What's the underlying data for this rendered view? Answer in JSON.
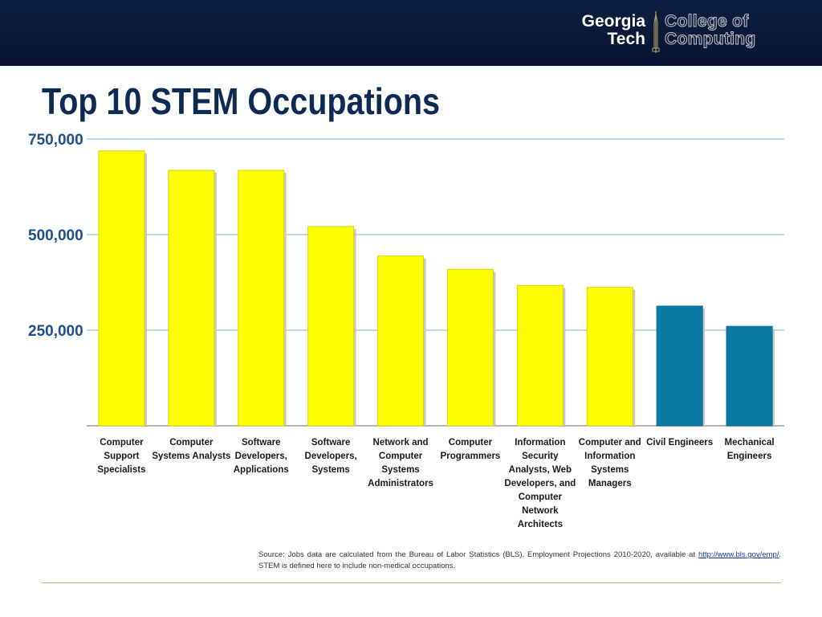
{
  "header": {
    "logo": {
      "line1": "Georgia",
      "line2": "Tech",
      "coc_line1": "College of",
      "coc_line2": "Computing"
    },
    "background_color": "#0d1f3f"
  },
  "slide": {
    "title": "Top 10 STEM Occupations"
  },
  "chart_data": {
    "type": "bar",
    "categories": [
      "Computer Support Specialists",
      "Computer Systems Analysts",
      "Software Developers, Applications",
      "Software Developers, Systems",
      "Network and Computer Systems Administrators",
      "Computer Programmers",
      "Information Security Analysts, Web Developers, and Computer Network Architects",
      "Computer and Information Systems Managers",
      "Civil Engineers",
      "Mechanical Engineers"
    ],
    "category_label_lines": [
      [
        "Computer",
        "Support",
        "Specialists"
      ],
      [
        "Computer",
        "Systems Analysts"
      ],
      [
        "Software",
        "Developers,",
        "Applications"
      ],
      [
        "Software",
        "Developers,",
        "Systems"
      ],
      [
        "Network and",
        "Computer",
        "Systems",
        "Administrators"
      ],
      [
        "Computer",
        "Programmers"
      ],
      [
        "Information",
        "Security",
        "Analysts, Web",
        "Developers, and",
        "Computer",
        "Network",
        "Architects"
      ],
      [
        "Computer and",
        "Information",
        "Systems",
        "Managers"
      ],
      [
        "Civil Engineers"
      ],
      [
        "Mechanical",
        "Engineers"
      ]
    ],
    "values": [
      719000,
      668000,
      668000,
      521000,
      444000,
      409000,
      367000,
      362000,
      313000,
      260000
    ],
    "bar_colors": [
      "#ffff00",
      "#ffff00",
      "#ffff00",
      "#ffff00",
      "#ffff00",
      "#ffff00",
      "#ffff00",
      "#ffff00",
      "#0a7aa5",
      "#0a7aa5"
    ],
    "ylim": [
      0,
      750000
    ],
    "yticks": [
      250000,
      500000,
      750000
    ],
    "ytick_labels": [
      "250,000",
      "500,000",
      "750,000"
    ],
    "grid": true,
    "title": "",
    "xlabel": "",
    "ylabel": ""
  },
  "source_note": {
    "prefix": "Source: Jobs data are calculated from the Bureau of Labor Statistics (BLS), Employment Projections 2010-2020, available at",
    "link_text": "http://www.bls.gov/emp/",
    "suffix": ". STEM is defined here to include non-medical occupations."
  }
}
